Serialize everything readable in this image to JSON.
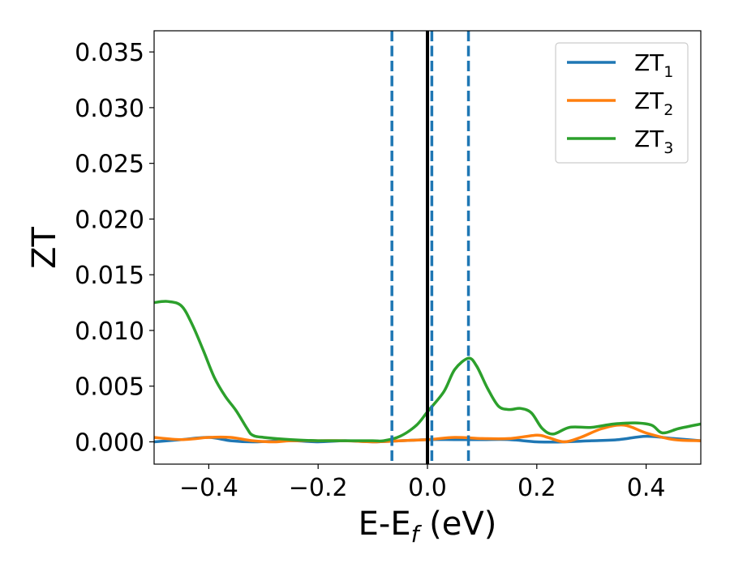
{
  "chart_data": {
    "type": "line",
    "xlabel": "E-E_f (eV)",
    "xlabel_main": "E-E",
    "xlabel_sub": "f",
    "xlabel_tail": " (eV)",
    "ylabel": "ZT",
    "xlim": [
      -0.5,
      0.5
    ],
    "ylim": [
      -0.002,
      0.0369
    ],
    "xticks": [
      -0.4,
      -0.2,
      0.0,
      0.2,
      0.4
    ],
    "xtick_labels": [
      "−0.4",
      "−0.2",
      "0.0",
      "0.2",
      "0.4"
    ],
    "yticks": [
      0.0,
      0.005,
      0.01,
      0.015,
      0.02,
      0.025,
      0.03,
      0.035
    ],
    "ytick_labels": [
      "0.000",
      "0.005",
      "0.010",
      "0.015",
      "0.020",
      "0.025",
      "0.030",
      "0.035"
    ],
    "grid": false,
    "legend_position": "top-right",
    "vertical_lines": [
      {
        "x": 0.0,
        "style": "solid",
        "color": "#000000"
      },
      {
        "x": -0.065,
        "style": "dashed",
        "color": "#1f77b4"
      },
      {
        "x": 0.008,
        "style": "dashed",
        "color": "#1f77b4"
      },
      {
        "x": 0.075,
        "style": "dashed",
        "color": "#1f77b4"
      }
    ],
    "series": [
      {
        "name": "ZT_1",
        "label_main": "ZT",
        "label_sub": "1",
        "color": "#1f77b4",
        "x": [
          -0.5,
          -0.45,
          -0.4,
          -0.36,
          -0.32,
          -0.25,
          -0.2,
          -0.15,
          -0.1,
          -0.05,
          0.0,
          0.05,
          0.1,
          0.15,
          0.2,
          0.25,
          0.3,
          0.35,
          0.4,
          0.45,
          0.5
        ],
        "y": [
          0.0,
          0.0002,
          0.0004,
          0.0001,
          0.0,
          0.0001,
          0.0,
          0.0001,
          0.0,
          0.0001,
          0.0002,
          0.0002,
          0.0002,
          0.0002,
          0.0,
          0.0,
          0.0001,
          0.0002,
          0.0005,
          0.0003,
          0.0001
        ]
      },
      {
        "name": "ZT_2",
        "label_main": "ZT",
        "label_sub": "2",
        "color": "#ff7f0e",
        "x": [
          -0.5,
          -0.45,
          -0.4,
          -0.36,
          -0.32,
          -0.28,
          -0.25,
          -0.2,
          -0.15,
          -0.1,
          -0.05,
          0.0,
          0.05,
          0.1,
          0.15,
          0.2,
          0.22,
          0.25,
          0.28,
          0.32,
          0.36,
          0.4,
          0.45,
          0.5
        ],
        "y": [
          0.0004,
          0.0002,
          0.0004,
          0.0004,
          0.0001,
          0.0,
          0.0001,
          0.0001,
          0.0001,
          0.0,
          0.0001,
          0.0002,
          0.0004,
          0.0003,
          0.0003,
          0.0006,
          0.0004,
          0.0,
          0.0004,
          0.0012,
          0.0015,
          0.0008,
          0.0002,
          0.0001
        ]
      },
      {
        "name": "ZT_3",
        "label_main": "ZT",
        "label_sub": "3",
        "color": "#2ca02c",
        "x": [
          -0.5,
          -0.475,
          -0.45,
          -0.43,
          -0.41,
          -0.39,
          -0.37,
          -0.35,
          -0.33,
          -0.32,
          -0.3,
          -0.25,
          -0.2,
          -0.15,
          -0.1,
          -0.08,
          -0.05,
          -0.02,
          0.0,
          0.03,
          0.05,
          0.075,
          0.09,
          0.11,
          0.13,
          0.15,
          0.17,
          0.19,
          0.21,
          0.23,
          0.26,
          0.3,
          0.34,
          0.38,
          0.41,
          0.43,
          0.46,
          0.5
        ],
        "y": [
          0.0125,
          0.0126,
          0.0122,
          0.0105,
          0.0082,
          0.0058,
          0.0041,
          0.0028,
          0.0012,
          0.0006,
          0.0004,
          0.0002,
          0.0001,
          0.0001,
          0.0001,
          0.0001,
          0.0005,
          0.0015,
          0.0027,
          0.0045,
          0.0065,
          0.0075,
          0.0068,
          0.0048,
          0.0032,
          0.0029,
          0.003,
          0.0026,
          0.0012,
          0.0007,
          0.0013,
          0.0013,
          0.0016,
          0.0017,
          0.0015,
          0.0008,
          0.0012,
          0.0016
        ]
      }
    ]
  }
}
